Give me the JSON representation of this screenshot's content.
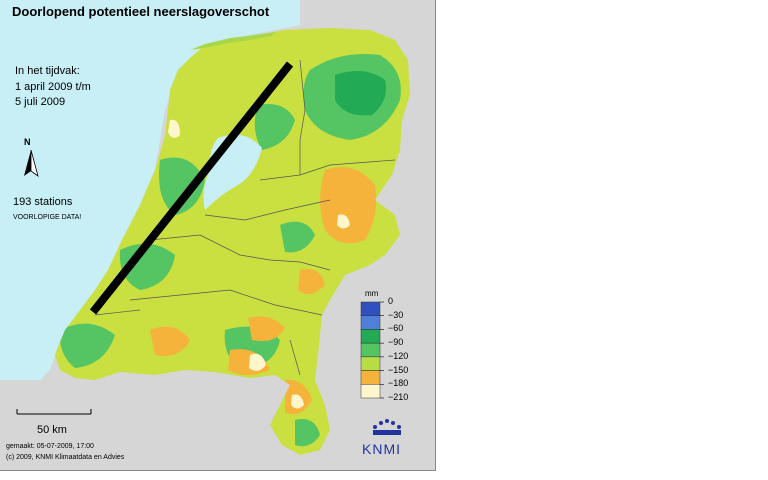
{
  "map": {
    "title": "Doorlopend potentieel neerslagoverschot",
    "period_label": "In het tijdvak:",
    "period_start": "1 april 2009 t/m",
    "period_end": "5 juli 2009",
    "north_label": "N",
    "stations": "193 stations",
    "preliminary": "VOORLOPIGE DATA!",
    "scale_label": "50 km",
    "made": "gemaakt: 05-07-2009, 17:00",
    "copyright": "(c) 2009, KNMI Klimaatdata en Advies",
    "logo_text": "KNMI",
    "colors": {
      "sea": "#c8eef6",
      "land_outside": "#d6d6d6",
      "dark_blue": "#3050c0",
      "blue": "#4f7fd8",
      "dark_green": "#22aa55",
      "green": "#55c463",
      "light_green": "#a8d84a",
      "yellow_green": "#c9e040",
      "orange": "#f5b33b",
      "cream": "#fff6cc",
      "line": "#000000"
    }
  },
  "legend": {
    "unit": "mm",
    "ticks": [
      "0",
      "−30",
      "−60",
      "−90",
      "−120",
      "−150",
      "−180",
      "−210"
    ],
    "bins": [
      {
        "range": "0 to -30",
        "color": "#3050c0"
      },
      {
        "range": "-30 to -60",
        "color": "#4f7fd8"
      },
      {
        "range": "-60 to -90",
        "color": "#22aa55"
      },
      {
        "range": "-90 to -120",
        "color": "#55c463"
      },
      {
        "range": "-120 to -150",
        "color": "#b8dc44"
      },
      {
        "range": "-150 to -180",
        "color": "#f5b33b"
      },
      {
        "range": "-180 to -210",
        "color": "#fff6cc"
      }
    ]
  }
}
